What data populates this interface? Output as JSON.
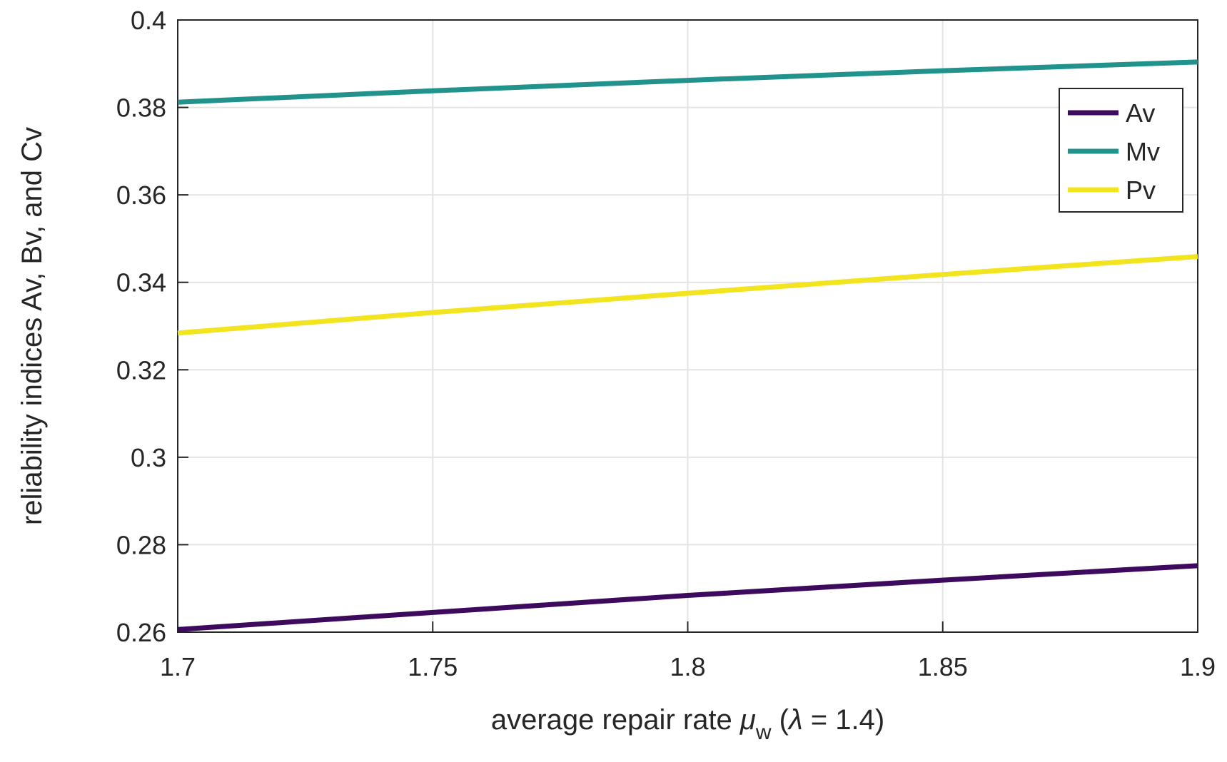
{
  "figure": {
    "background": "#ffffff"
  },
  "chart_data": {
    "type": "line",
    "x": [
      1.7,
      1.75,
      1.8,
      1.85,
      1.9
    ],
    "series": [
      {
        "name": "Av",
        "color": "#3e0a5e",
        "values": [
          0.2606,
          0.2645,
          0.2684,
          0.2719,
          0.2752
        ]
      },
      {
        "name": "Mv",
        "color": "#22938c",
        "values": [
          0.3812,
          0.3838,
          0.3862,
          0.3884,
          0.3904
        ]
      },
      {
        "name": "Pv",
        "color": "#f2e41f",
        "values": [
          0.3284,
          0.3331,
          0.3375,
          0.3418,
          0.3459
        ]
      }
    ],
    "title": "",
    "xlabel": {
      "text_before": "average repair rate ",
      "mu": "μ",
      "mu_subscript": "w",
      "text_open": " (",
      "lambda": "λ",
      "text_after": " = 1.4)"
    },
    "ylabel": "reliability indices Av, Bv, and Cv",
    "xlim": [
      1.7,
      1.9
    ],
    "ylim": [
      0.26,
      0.4
    ],
    "xticks": {
      "values": [
        1.7,
        1.75,
        1.8,
        1.85,
        1.9
      ],
      "labels": [
        "1.7",
        "1.75",
        "1.8",
        "1.85",
        "1.9"
      ]
    },
    "yticks": {
      "values": [
        0.26,
        0.28,
        0.3,
        0.32,
        0.34,
        0.36,
        0.38,
        0.4
      ],
      "labels": [
        "0.26",
        "0.28",
        "0.3",
        "0.32",
        "0.34",
        "0.36",
        "0.38",
        "0.4"
      ]
    },
    "grid": true,
    "legend": {
      "position": "northeast",
      "entries": [
        "Av",
        "Mv",
        "Pv"
      ]
    },
    "colors": {
      "axis": "#262626",
      "grid": "#e4e4e4",
      "text": "#262626",
      "legend_border": "#262626",
      "legend_background": "#ffffff"
    }
  }
}
